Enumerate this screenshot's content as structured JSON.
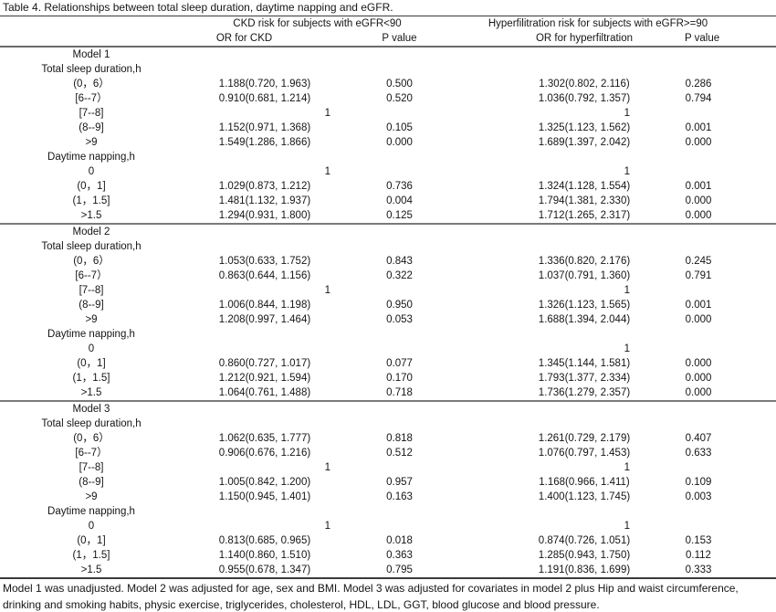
{
  "title": "Table 4. Relationships between total sleep duration, daytime napping and eGFR.",
  "header": {
    "group_ckd": "CKD risk for subjects with eGFR<90",
    "group_hyper": "Hyperfilitration risk for subjects with eGFR>=90",
    "col_or_ckd": "OR for CKD",
    "col_p1": "P value",
    "col_or_hyper": "OR for hyperfiltration",
    "col_p2": "P value"
  },
  "models": [
    {
      "name": "Model 1",
      "sections": [
        {
          "label": "Total sleep duration,h",
          "rows": [
            {
              "label": "(0，6）",
              "or1": "1.188(0.720, 1.963)",
              "p1": "0.500",
              "or2": "1.302(0.802, 2.116)",
              "p2": "0.286"
            },
            {
              "label": "[6--7）",
              "or1": "0.910(0.681, 1.214)",
              "p1": "0.520",
              "or2": "1.036(0.792, 1.357)",
              "p2": "0.794"
            },
            {
              "label": "[7--8]",
              "ref1": "1",
              "ref2": "1"
            },
            {
              "label": "(8--9]",
              "or1": "1.152(0.971, 1.368)",
              "p1": "0.105",
              "or2": "1.325(1.123, 1.562)",
              "p2": "0.001"
            },
            {
              "label": ">9",
              "or1": "1.549(1.286, 1.866)",
              "p1": "0.000",
              "or2": "1.689(1.397, 2.042)",
              "p2": "0.000"
            }
          ]
        },
        {
          "label": "Daytime napping,h",
          "rows": [
            {
              "label": "0",
              "ref1": "1",
              "ref2": "1"
            },
            {
              "label": "(0，1]",
              "or1": "1.029(0.873, 1.212)",
              "p1": "0.736",
              "or2": "1.324(1.128, 1.554)",
              "p2": "0.001"
            },
            {
              "label": "(1，1.5]",
              "or1": "1.481(1.132, 1.937)",
              "p1": "0.004",
              "or2": "1.794(1.381, 2.330)",
              "p2": "0.000"
            },
            {
              "label": ">1.5",
              "or1": "1.294(0.931, 1.800)",
              "p1": "0.125",
              "or2": "1.712(1.265, 2.317)",
              "p2": "0.000"
            }
          ]
        }
      ]
    },
    {
      "name": "Model 2",
      "sections": [
        {
          "label": "Total sleep duration,h",
          "rows": [
            {
              "label": "(0，6）",
              "or1": "1.053(0.633, 1.752)",
              "p1": "0.843",
              "or2": "1.336(0.820, 2.176)",
              "p2": "0.245"
            },
            {
              "label": "[6--7）",
              "or1": "0.863(0.644, 1.156)",
              "p1": "0.322",
              "or2": "1.037(0.791, 1.360)",
              "p2": "0.791"
            },
            {
              "label": "[7--8]",
              "ref1": "1",
              "ref2": "1"
            },
            {
              "label": "(8--9]",
              "or1": "1.006(0.844, 1.198)",
              "p1": "0.950",
              "or2": "1.326(1.123, 1.565)",
              "p2": "0.001"
            },
            {
              "label": ">9",
              "or1": "1.208(0.997, 1.464)",
              "p1": "0.053",
              "or2": "1.688(1.394, 2.044)",
              "p2": "0.000"
            }
          ]
        },
        {
          "label": "Daytime napping,h",
          "rows": [
            {
              "label": "0",
              "ref1": null,
              "ref2": "1"
            },
            {
              "label": "(0，1]",
              "or1": "0.860(0.727, 1.017)",
              "p1": "0.077",
              "or2": "1.345(1.144, 1.581)",
              "p2": "0.000"
            },
            {
              "label": "(1，1.5]",
              "or1": "1.212(0.921, 1.594)",
              "p1": "0.170",
              "or2": "1.793(1.377, 2.334)",
              "p2": "0.000"
            },
            {
              "label": ">1.5",
              "or1": "1.064(0.761, 1.488)",
              "p1": "0.718",
              "or2": "1.736(1.279, 2.357)",
              "p2": "0.000"
            }
          ]
        }
      ]
    },
    {
      "name": "Model 3",
      "sections": [
        {
          "label": "Total sleep duration,h",
          "rows": [
            {
              "label": "(0，6）",
              "or1": "1.062(0.635, 1.777)",
              "p1": "0.818",
              "or2": "1.261(0.729, 2.179)",
              "p2": "0.407"
            },
            {
              "label": "[6--7）",
              "or1": "0.906(0.676, 1.216)",
              "p1": "0.512",
              "or2": "1.076(0.797, 1.453)",
              "p2": "0.633"
            },
            {
              "label": "[7--8]",
              "ref1": "1",
              "ref2": "1"
            },
            {
              "label": "(8--9]",
              "or1": "1.005(0.842, 1.200)",
              "p1": "0.957",
              "or2": "1.168(0.966, 1.411)",
              "p2": "0.109"
            },
            {
              "label": ">9",
              "or1": "1.150(0.945, 1.401)",
              "p1": "0.163",
              "or2": "1.400(1.123, 1.745)",
              "p2": "0.003"
            }
          ]
        },
        {
          "label": "Daytime napping,h",
          "rows": [
            {
              "label": "0",
              "ref1": "1",
              "ref2": "1"
            },
            {
              "label": "(0，1]",
              "or1": "0.813(0.685, 0.965)",
              "p1": "0.018",
              "or2": "0.874(0.726, 1.051)",
              "p2": "0.153"
            },
            {
              "label": "(1，1.5]",
              "or1": "1.140(0.860, 1.510)",
              "p1": "0.363",
              "or2": "1.285(0.943, 1.750)",
              "p2": "0.112"
            },
            {
              "label": ">1.5",
              "or1": "0.955(0.678, 1.347)",
              "p1": "0.795",
              "or2": "1.191(0.836, 1.699)",
              "p2": "0.333"
            }
          ]
        }
      ]
    }
  ],
  "footnote": "Model 1 was unadjusted. Model 2 was adjusted for age, sex and BMI. Model 3 was adjusted for covariates in model 2 plus Hip and waist circumference, drinking and smoking habits, physic exercise, triglycerides, cholesterol, HDL, LDL, GGT, blood glucose and blood pressure."
}
